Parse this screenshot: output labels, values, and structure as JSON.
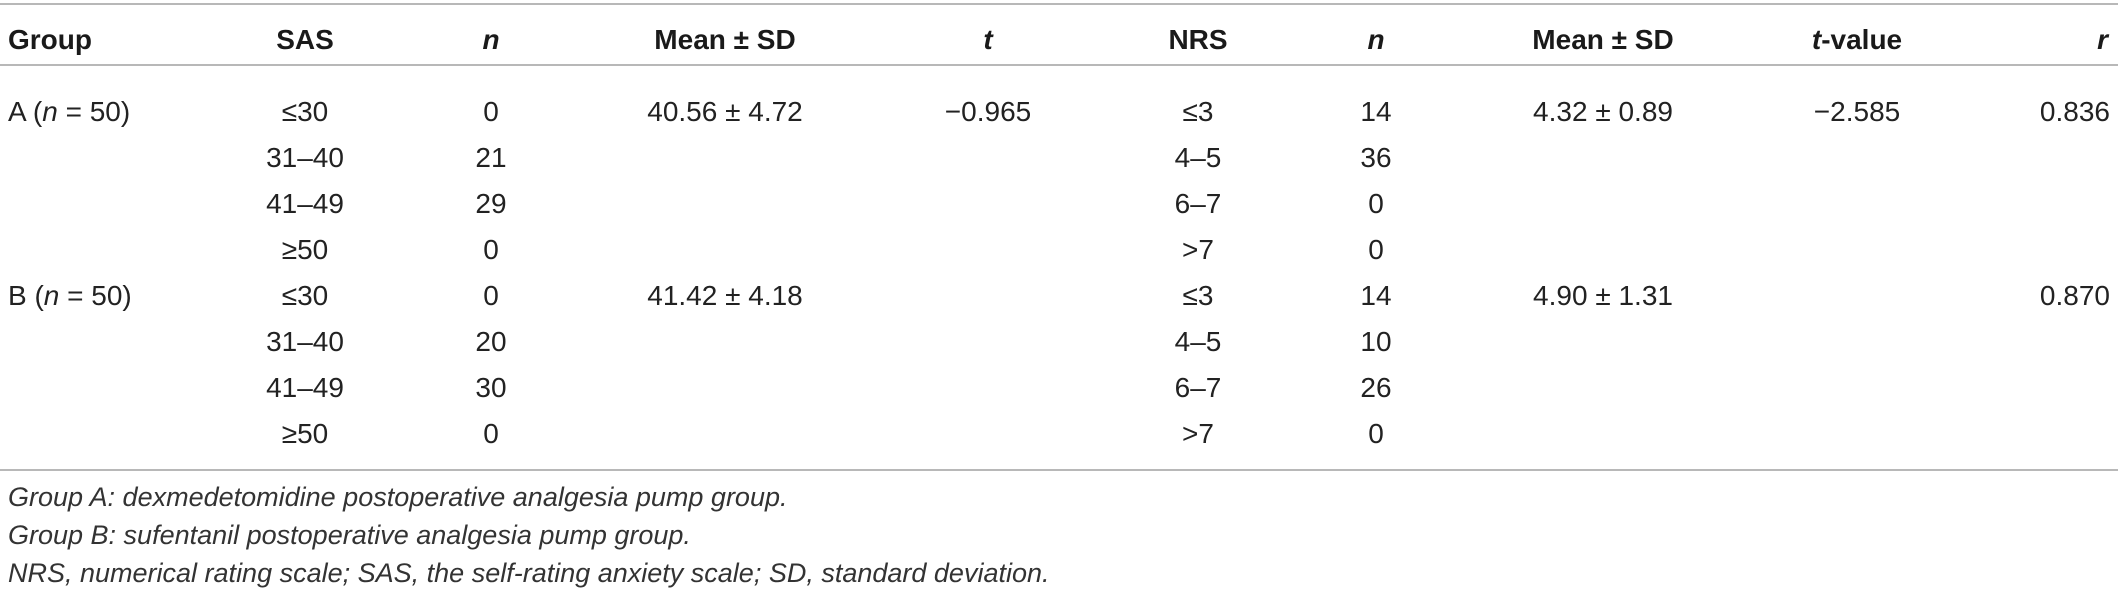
{
  "headers": {
    "group": "Group",
    "sas": "SAS",
    "n1": "n",
    "mean1": "Mean ± SD",
    "t1": "t",
    "nrs": "NRS",
    "n2": "n",
    "mean2": "Mean ± SD",
    "tvalue_italic": "t",
    "tvalue_rest": "-value",
    "r": "r"
  },
  "groups": [
    {
      "label_pre": "A (",
      "label_n": "n",
      "label_post": " = 50)",
      "mean_sas": "40.56 ± 4.72",
      "t": "−0.965",
      "mean_nrs": "4.32 ± 0.89",
      "t_value": "−2.585",
      "r": "0.836",
      "rows": [
        {
          "sas": "≤30",
          "n_sas": "0",
          "nrs": "≤3",
          "n_nrs": "14"
        },
        {
          "sas": "31–40",
          "n_sas": "21",
          "nrs": "4–5",
          "n_nrs": "36"
        },
        {
          "sas": "41–49",
          "n_sas": "29",
          "nrs": "6–7",
          "n_nrs": "0"
        },
        {
          "sas": "≥50",
          "n_sas": "0",
          "nrs": ">7",
          "n_nrs": "0"
        }
      ]
    },
    {
      "label_pre": "B (",
      "label_n": "n",
      "label_post": " = 50)",
      "mean_sas": "41.42 ± 4.18",
      "t": "",
      "mean_nrs": "4.90 ± 1.31",
      "t_value": "",
      "r": "0.870",
      "rows": [
        {
          "sas": "≤30",
          "n_sas": "0",
          "nrs": "≤3",
          "n_nrs": "14"
        },
        {
          "sas": "31–40",
          "n_sas": "20",
          "nrs": "4–5",
          "n_nrs": "10"
        },
        {
          "sas": "41–49",
          "n_sas": "30",
          "nrs": "6–7",
          "n_nrs": "26"
        },
        {
          "sas": "≥50",
          "n_sas": "0",
          "nrs": ">7",
          "n_nrs": "0"
        }
      ]
    }
  ],
  "notes": [
    "Group A: dexmedetomidine postoperative analgesia pump group.",
    "Group B: sufentanil postoperative analgesia pump group.",
    "NRS, numerical rating scale; SAS, the self-rating anxiety scale; SD, standard deviation."
  ]
}
